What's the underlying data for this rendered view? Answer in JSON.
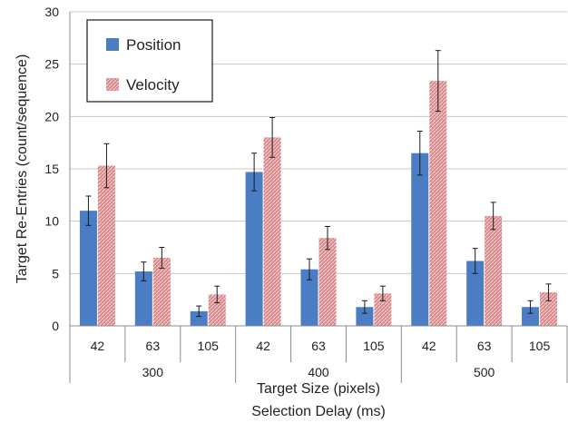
{
  "chart_data": {
    "type": "bar",
    "title": "",
    "ylabel": "Target Re-Entries (count/sequence)",
    "xlabel_inner": "Target Size (pixels)",
    "xlabel_outer": "Selection Delay (ms)",
    "ylim": [
      0,
      30
    ],
    "yticks": [
      0,
      5,
      10,
      15,
      20,
      25,
      30
    ],
    "grid": true,
    "legend_position": "top-left",
    "groups": [
      {
        "label": "300",
        "categories": [
          "42",
          "63",
          "105"
        ]
      },
      {
        "label": "400",
        "categories": [
          "42",
          "63",
          "105"
        ]
      },
      {
        "label": "500",
        "categories": [
          "42",
          "63",
          "105"
        ]
      }
    ],
    "series": [
      {
        "name": "Position",
        "color": "#4a7dc4",
        "values": [
          11.0,
          5.2,
          1.4,
          14.7,
          5.4,
          1.8,
          16.5,
          6.2,
          1.8
        ],
        "errors": [
          1.4,
          0.9,
          0.5,
          1.8,
          1.0,
          0.6,
          2.1,
          1.2,
          0.6
        ]
      },
      {
        "name": "Velocity",
        "color": "#d9898b",
        "values": [
          15.3,
          6.5,
          3.0,
          18.0,
          8.4,
          3.1,
          23.4,
          10.5,
          3.2
        ],
        "errors": [
          2.1,
          1.0,
          0.8,
          1.9,
          1.1,
          0.7,
          2.9,
          1.3,
          0.8
        ]
      }
    ]
  }
}
